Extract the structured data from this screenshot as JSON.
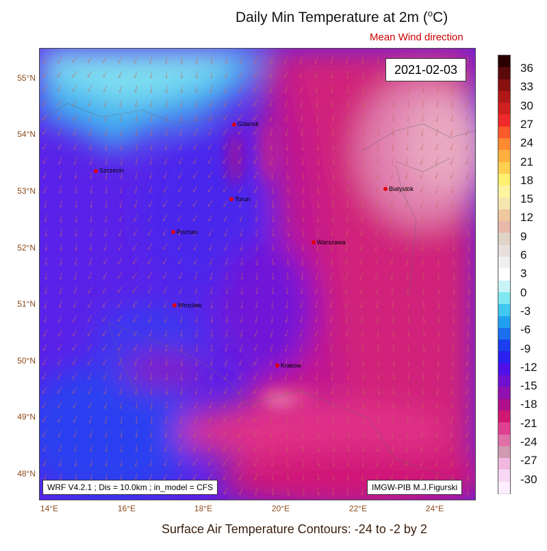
{
  "title": "Daily Min Temperature at 2m (",
  "title_unit_sup": "o",
  "title_unit": "C)",
  "subtitle": "Mean Wind direction",
  "date": "2021-02-03",
  "model_info": "WRF V4.2.1 ; Dis = 10.0km ; in_model = CFS",
  "credit": "IMGW-PIB M.J.Figurski",
  "footer": "Surface Air Temperature Contours: -24 to -2 by 2",
  "lat_labels": [
    "55°N",
    "54°N",
    "53°N",
    "52°N",
    "51°N",
    "50°N",
    "49°N",
    "48°N"
  ],
  "lon_labels": [
    "14°E",
    "16°E",
    "18°E",
    "20°E",
    "22°E",
    "24°E"
  ],
  "colorbar": {
    "labels": [
      "36",
      "33",
      "30",
      "27",
      "24",
      "21",
      "18",
      "15",
      "12",
      "9",
      "6",
      "3",
      "0",
      "-3",
      "-6",
      "-9",
      "-12",
      "-15",
      "-18",
      "-21",
      "-24",
      "-27",
      "-30"
    ],
    "colors": [
      "#2a0000",
      "#5a0a0a",
      "#8a1010",
      "#b01818",
      "#d02020",
      "#f02a2a",
      "#ff5a2a",
      "#ff8a30",
      "#ffae40",
      "#ffd050",
      "#fff070",
      "#fff4a0",
      "#f6e6b0",
      "#efc8a0",
      "#e8b8a8",
      "#e0d4c8",
      "#e8e0dc",
      "#f0f0f0",
      "#ffffff",
      "#c8f4f8",
      "#80e8f0",
      "#40c8f0",
      "#20a0f0",
      "#1a70f0",
      "#1a40f0",
      "#2a20f0",
      "#5010e8",
      "#7010d0",
      "#9010b0",
      "#b0108a",
      "#d01870",
      "#e04090",
      "#e070a8",
      "#d09ab0",
      "#f0b8e0",
      "#f8d8f4",
      "#ffeeff"
    ]
  },
  "cities": [
    {
      "name": "Szczecin"
    },
    {
      "name": "Gdansk"
    },
    {
      "name": "Torun"
    },
    {
      "name": "Bialystok"
    },
    {
      "name": "Poznan"
    },
    {
      "name": "Warszawa"
    },
    {
      "name": "Wroclaw"
    },
    {
      "name": "Krakow"
    }
  ]
}
